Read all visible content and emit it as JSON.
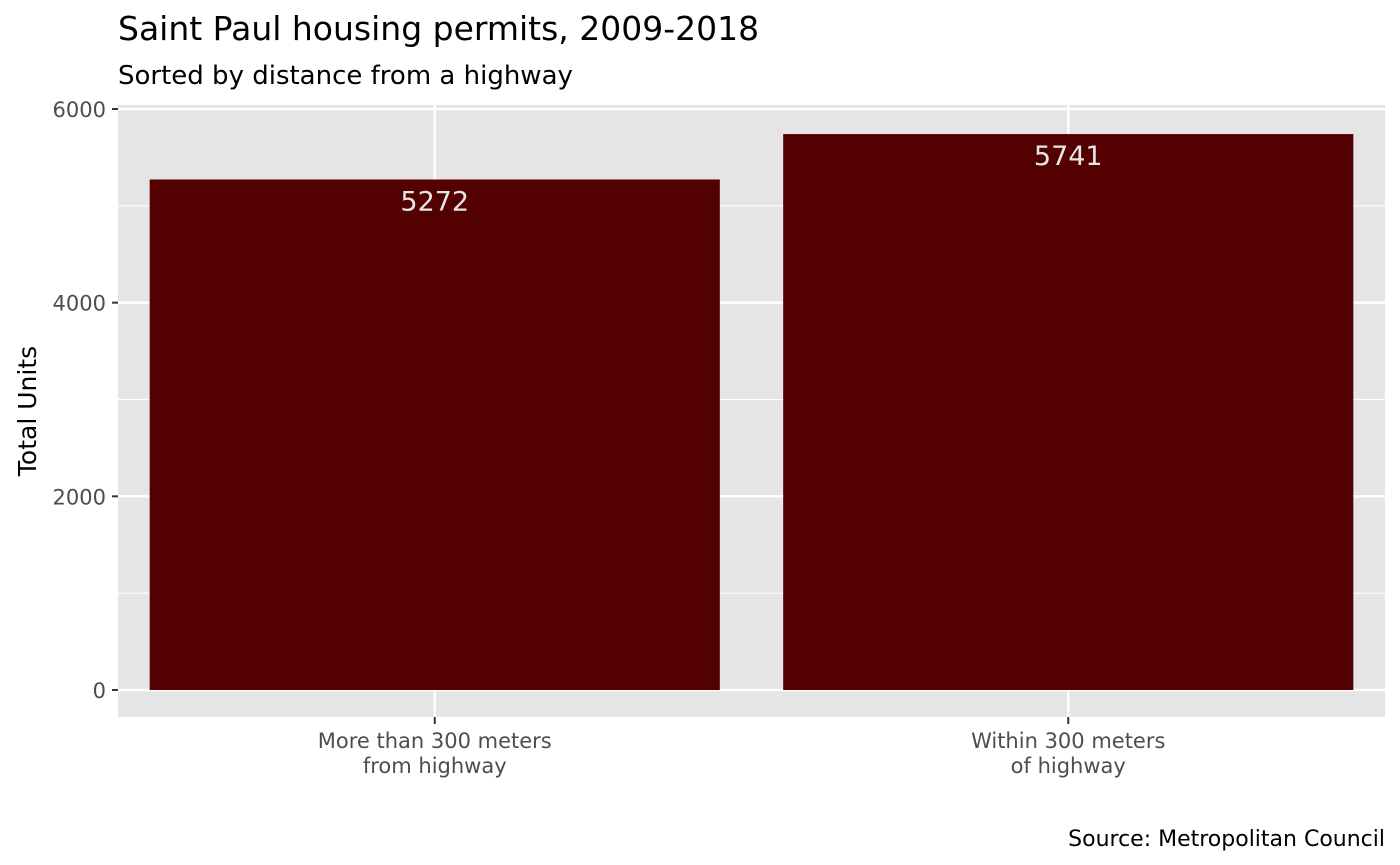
{
  "chart_data": {
    "type": "bar",
    "title": "Saint Paul housing permits, 2009-2018",
    "subtitle": "Sorted by distance from a highway",
    "xlabel": "",
    "ylabel": "Total Units",
    "caption": "Source: Metropolitan Council",
    "categories": [
      [
        "More than 300 meters",
        "from highway"
      ],
      [
        "Within 300 meters",
        "of highway"
      ]
    ],
    "values": [
      5272,
      5741
    ],
    "data_labels": [
      "5272",
      "5741"
    ],
    "ylim": [
      0,
      6000
    ],
    "yticks": [
      0,
      2000,
      4000,
      6000
    ],
    "ytick_labels": [
      "0",
      "2000",
      "4000",
      "6000"
    ],
    "grid": true,
    "legend": "none",
    "colors": {
      "bar": "#520000",
      "panel": "#e5e5e5",
      "grid": "#ffffff",
      "bar_label": "#e6e6e6",
      "tick_label": "#4d4d4d"
    }
  }
}
